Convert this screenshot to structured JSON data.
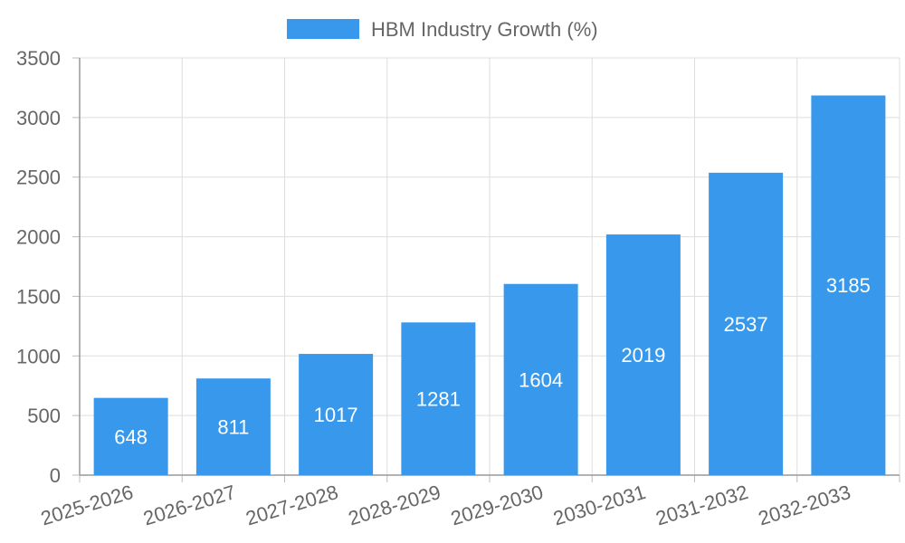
{
  "chart_data": {
    "type": "bar",
    "title": "",
    "xlabel": "",
    "ylabel": "",
    "legend": "top-center",
    "grid": true,
    "ylim": [
      0,
      3500
    ],
    "yticks": [
      "0",
      "500",
      "1000",
      "1500",
      "2000",
      "2500",
      "3000",
      "3500"
    ],
    "categories": [
      "2025-2026",
      "2026-2027",
      "2027-2028",
      "2028-2029",
      "2029-2030",
      "2030-2031",
      "2031-2032",
      "2032-2033"
    ],
    "series": [
      {
        "name": "HBM Industry Growth (%)",
        "color": "#3899ec",
        "values": [
          648,
          811,
          1017,
          1281,
          1604,
          2019,
          2537,
          3185
        ],
        "labels": [
          "648",
          "811",
          "1017",
          "1281",
          "1604",
          "2019",
          "2537",
          "3185"
        ]
      }
    ]
  }
}
